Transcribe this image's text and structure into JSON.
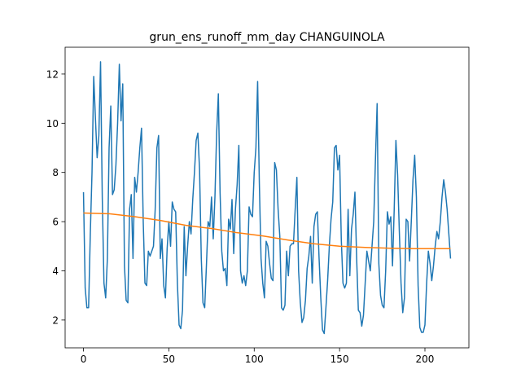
{
  "chart_data": {
    "type": "line",
    "title": "grun_ens_runoff_mm_day CHANGUINOLA",
    "xlim": [
      -10.75,
      225.75
    ],
    "xticks": [
      0,
      50,
      100,
      150,
      200
    ],
    "ylim": [
      0.87,
      13.09
    ],
    "yticks": [
      2,
      4,
      6,
      8,
      10,
      12
    ],
    "series": [
      {
        "color": "#1f77b4",
        "values": [
          7.2,
          3.3,
          2.5,
          2.5,
          5.5,
          8.0,
          11.9,
          10.2,
          8.6,
          9.5,
          12.5,
          7.0,
          3.5,
          2.9,
          4.5,
          9.0,
          10.7,
          7.1,
          7.3,
          8.3,
          10.0,
          12.4,
          10.1,
          11.6,
          4.2,
          2.8,
          2.7,
          6.5,
          7.1,
          4.5,
          7.8,
          7.2,
          8.0,
          9.0,
          9.8,
          6.0,
          3.5,
          3.4,
          4.8,
          4.6,
          4.8,
          5.0,
          6.5,
          9.0,
          9.5,
          4.5,
          5.3,
          3.4,
          2.9,
          4.9,
          6.0,
          5.0,
          6.8,
          6.5,
          6.4,
          3.5,
          1.8,
          1.65,
          2.4,
          5.8,
          3.8,
          5.0,
          6.0,
          5.5,
          6.9,
          8.0,
          9.3,
          9.6,
          8.1,
          4.5,
          2.7,
          2.5,
          4.2,
          6.0,
          5.8,
          7.0,
          5.3,
          7.0,
          9.6,
          11.2,
          7.2,
          4.8,
          4.0,
          4.1,
          3.4,
          6.1,
          5.7,
          6.9,
          4.7,
          6.5,
          7.5,
          9.1,
          4.0,
          3.5,
          3.8,
          3.4,
          4.0,
          6.6,
          6.3,
          6.2,
          8.0,
          9.0,
          11.7,
          7.6,
          4.5,
          3.5,
          2.9,
          5.2,
          5.0,
          4.3,
          3.7,
          3.6,
          8.4,
          8.1,
          6.5,
          5.4,
          2.5,
          2.4,
          2.6,
          4.8,
          3.8,
          5.0,
          5.1,
          5.1,
          6.5,
          7.8,
          4.0,
          2.7,
          1.9,
          2.1,
          2.8,
          4.1,
          4.6,
          5.4,
          3.5,
          5.8,
          6.3,
          6.4,
          4.5,
          2.9,
          1.6,
          1.45,
          2.5,
          3.6,
          5.0,
          6.1,
          6.8,
          9.0,
          9.1,
          8.1,
          8.7,
          5.3,
          3.5,
          3.3,
          3.5,
          6.5,
          3.8,
          5.7,
          6.3,
          7.2,
          4.5,
          2.4,
          2.3,
          1.75,
          2.2,
          3.5,
          4.8,
          4.4,
          4.0,
          5.0,
          6.0,
          8.5,
          10.8,
          4.3,
          3.0,
          2.6,
          2.5,
          4.0,
          6.4,
          5.9,
          6.2,
          4.2,
          6.5,
          9.3,
          7.9,
          5.6,
          3.5,
          2.3,
          2.9,
          6.1,
          6.0,
          4.4,
          6.0,
          7.7,
          8.7,
          7.0,
          3.4,
          1.7,
          1.5,
          1.5,
          1.8,
          3.5,
          4.8,
          4.3,
          3.6,
          4.2,
          5.0,
          5.6,
          5.3,
          6.0,
          7.0,
          7.7,
          7.2,
          6.5,
          5.5,
          4.5
        ]
      },
      {
        "color": "#ff7f0e",
        "x": [
          0,
          15,
          30,
          45,
          60,
          75,
          90,
          105,
          120,
          135,
          150,
          165,
          180,
          195,
          210,
          215
        ],
        "values": [
          6.35,
          6.32,
          6.2,
          6.05,
          5.85,
          5.72,
          5.55,
          5.42,
          5.25,
          5.1,
          5.0,
          4.95,
          4.92,
          4.9,
          4.9,
          4.9
        ]
      }
    ]
  }
}
